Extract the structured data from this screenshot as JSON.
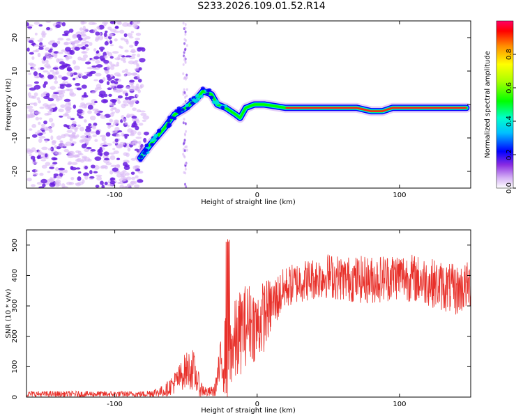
{
  "title": "S233.2026.109.01.52.R14",
  "colors": {
    "snr_line": "#e8302a",
    "scatter_light": "#d9b8f5",
    "scatter_dark": "#6a1ee0",
    "ridge_edge": "#00e0e0",
    "ridge_core": "#ff2020"
  },
  "chart_data": [
    {
      "type": "heatmap",
      "name": "spectrogram",
      "xlabel": "Height of straight line (km)",
      "ylabel": "Frequency (Hz)",
      "xlim": [
        -162,
        150
      ],
      "ylim": [
        -25,
        25
      ],
      "xticks": [
        -100,
        0,
        100
      ],
      "xtick_labels": [
        "-100",
        "0",
        "100"
      ],
      "yticks": [
        -20,
        -10,
        0,
        10,
        20
      ],
      "ytick_labels": [
        "-20",
        "-10",
        "0",
        "10",
        "20"
      ],
      "noise_region_x": [
        -162,
        -75
      ],
      "ridge": {
        "x": [
          -82,
          -75,
          -65,
          -58,
          -50,
          -42,
          -38,
          -32,
          -28,
          -22,
          -15,
          -12,
          -8,
          -2,
          5,
          20,
          40,
          60,
          70,
          80,
          88,
          95,
          100,
          120,
          140,
          147
        ],
        "freq": [
          -16,
          -12,
          -7,
          -3,
          -1,
          2,
          4,
          3,
          0,
          -1,
          -3,
          -4,
          -1,
          0,
          0,
          -1,
          -1,
          -1,
          -1,
          -2,
          -2,
          -1,
          -1,
          -1,
          -1,
          -1
        ]
      },
      "colorbar": {
        "label": "Normalized spectral amplitude",
        "range": [
          0,
          1
        ],
        "ticks": [
          0.0,
          0.2,
          0.4,
          0.6,
          0.8
        ],
        "tick_labels": [
          "0.0",
          "0.2",
          "0.4",
          "0.6",
          "0.8"
        ]
      }
    },
    {
      "type": "line",
      "name": "snr",
      "xlabel": "Height of straight line (km)",
      "ylabel": "SNR (10 * v/v)",
      "xlim": [
        -162,
        150
      ],
      "ylim": [
        0,
        550
      ],
      "xticks": [
        -100,
        0,
        100
      ],
      "xtick_labels": [
        "-100",
        "0",
        "100"
      ],
      "yticks": [
        0,
        100,
        200,
        300,
        400,
        500
      ],
      "ytick_labels": [
        "0",
        "100",
        "200",
        "300",
        "400",
        "500"
      ],
      "envelope": {
        "x": [
          -162,
          -80,
          -65,
          -55,
          -50,
          -45,
          -40,
          -35,
          -30,
          -25,
          -20,
          -18,
          -15,
          -10,
          -5,
          0,
          5,
          10,
          15,
          20,
          30,
          40,
          50,
          60,
          80,
          100,
          120,
          140,
          150
        ],
        "mean": [
          10,
          10,
          20,
          60,
          90,
          90,
          30,
          15,
          20,
          120,
          150,
          160,
          180,
          230,
          250,
          230,
          270,
          300,
          330,
          360,
          380,
          390,
          400,
          390,
          385,
          400,
          380,
          350,
          370
        ],
        "spread": [
          10,
          10,
          20,
          45,
          60,
          70,
          30,
          15,
          20,
          90,
          180,
          120,
          150,
          140,
          130,
          120,
          120,
          90,
          80,
          70,
          70,
          70,
          75,
          75,
          80,
          80,
          80,
          85,
          80
        ]
      }
    }
  ]
}
